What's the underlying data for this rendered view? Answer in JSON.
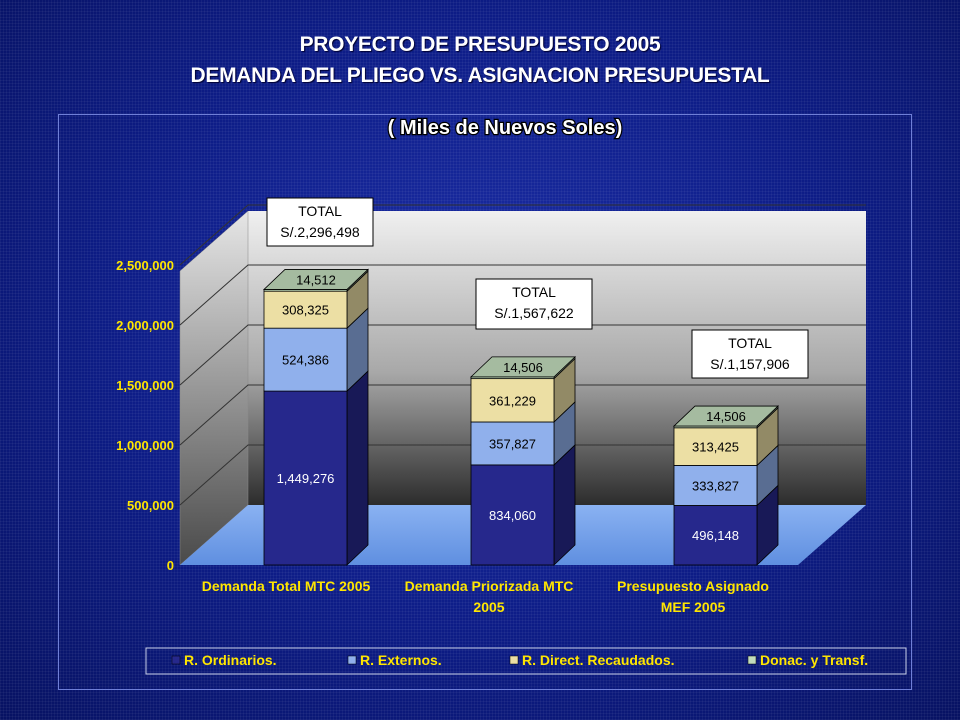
{
  "title_line1": "PROYECTO DE PRESUPUESTO 2005",
  "title_line2": "DEMANDA DEL PLIEGO  VS.  ASIGNACION PRESUPUESTAL",
  "colors": {
    "background": "#0b1a7a",
    "r_ordinarios": "#26288c",
    "r_externos": "#90b0ec",
    "r_direct_recaudados": "#ecdfa4",
    "donac_transf": "#c2dcbc",
    "floor": "#7ea8ee",
    "wall": "#c4c4c4",
    "axis_text": "#ffe600"
  },
  "chart_data": {
    "type": "bar",
    "stacked": true,
    "three_d": true,
    "subtitle": "( Miles de Nuevos Soles)",
    "categories": [
      [
        "Demanda Total MTC 2005"
      ],
      [
        "Demanda Priorizada MTC",
        "2005"
      ],
      [
        "Presupuesto Asignado",
        "MEF 2005"
      ]
    ],
    "series": [
      {
        "name": "R. Ordinarios.",
        "values": [
          1449276,
          834060,
          496148
        ],
        "labels": [
          "1,449,276",
          "834,060",
          "496,148"
        ]
      },
      {
        "name": "R. Externos.",
        "values": [
          524386,
          357827,
          333827
        ],
        "labels": [
          "524,386",
          "357,827",
          "333,827"
        ]
      },
      {
        "name": "R. Direct. Recaudados.",
        "values": [
          308325,
          361229,
          313425
        ],
        "labels": [
          "308,325",
          "361,229",
          "313,425"
        ]
      },
      {
        "name": "Donac. y Transf.",
        "values": [
          14512,
          14506,
          14506
        ],
        "labels": [
          "14,512",
          "14,506",
          "14,506"
        ]
      }
    ],
    "totals": [
      {
        "heading": "TOTAL",
        "value": "S/.2,296,498"
      },
      {
        "heading": "TOTAL",
        "value": "S/.1,567,622"
      },
      {
        "heading": "TOTAL",
        "value": "S/.1,157,906"
      }
    ],
    "ylim": [
      0,
      2500000
    ],
    "yticks": [
      0,
      500000,
      1000000,
      1500000,
      2000000,
      2500000
    ],
    "ytick_labels": [
      "0",
      "500,000",
      "1,000,000",
      "1,500,000",
      "2,000,000",
      "2,500,000"
    ],
    "gridlines": true,
    "legend_position": "bottom"
  }
}
